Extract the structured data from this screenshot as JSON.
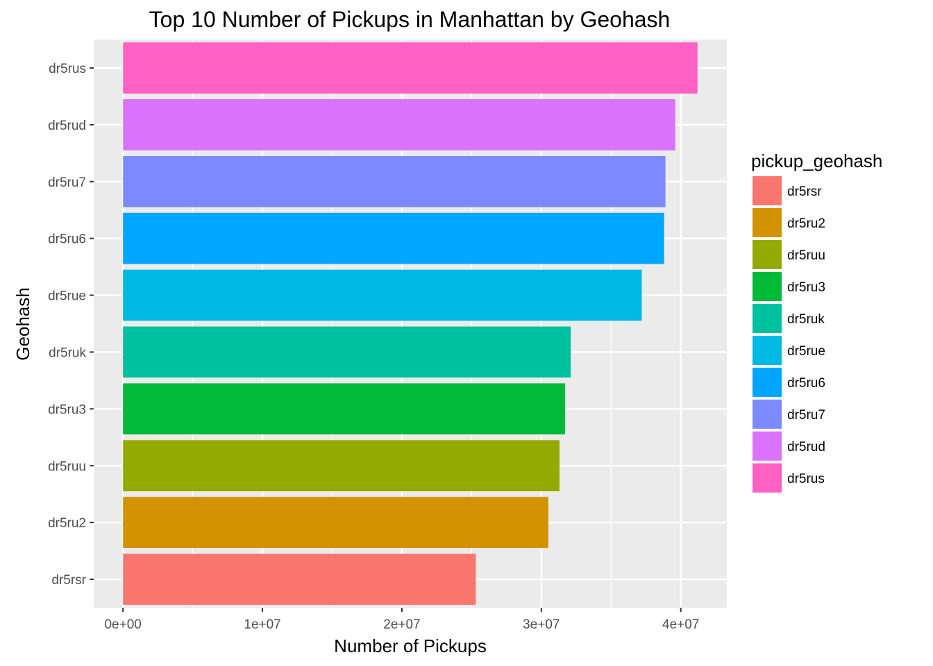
{
  "chart_data": {
    "type": "bar",
    "orientation": "horizontal",
    "title": "Top 10 Number of Pickups in Manhattan by Geohash",
    "xlabel": "Number of Pickups",
    "ylabel": "Geohash",
    "categories": [
      "dr5rsr",
      "dr5ru2",
      "dr5ruu",
      "dr5ru3",
      "dr5ruk",
      "dr5rue",
      "dr5ru6",
      "dr5ru7",
      "dr5rud",
      "dr5rus"
    ],
    "values": [
      25300000,
      30500000,
      31300000,
      31700000,
      32100000,
      37200000,
      38800000,
      38900000,
      39600000,
      41200000
    ],
    "colors": [
      "#F8766D",
      "#D39200",
      "#93AA00",
      "#00BA38",
      "#00C19F",
      "#00B9E3",
      "#00A5FF",
      "#7D8AFF",
      "#DB72FB",
      "#FF61C3"
    ],
    "xlim": [
      -2100000,
      43300000
    ],
    "xticks": [
      0,
      10000000,
      20000000,
      30000000,
      40000000
    ],
    "xtick_labels": [
      "0e+00",
      "1e+07",
      "2e+07",
      "3e+07",
      "4e+07"
    ],
    "grid": true,
    "panel_background": "#EBEBEB",
    "legend": {
      "title": "pickup_geohash",
      "placement": "right",
      "entries": [
        "dr5rsr",
        "dr5ru2",
        "dr5ruu",
        "dr5ru3",
        "dr5ruk",
        "dr5rue",
        "dr5ru6",
        "dr5ru7",
        "dr5rud",
        "dr5rus"
      ]
    }
  }
}
